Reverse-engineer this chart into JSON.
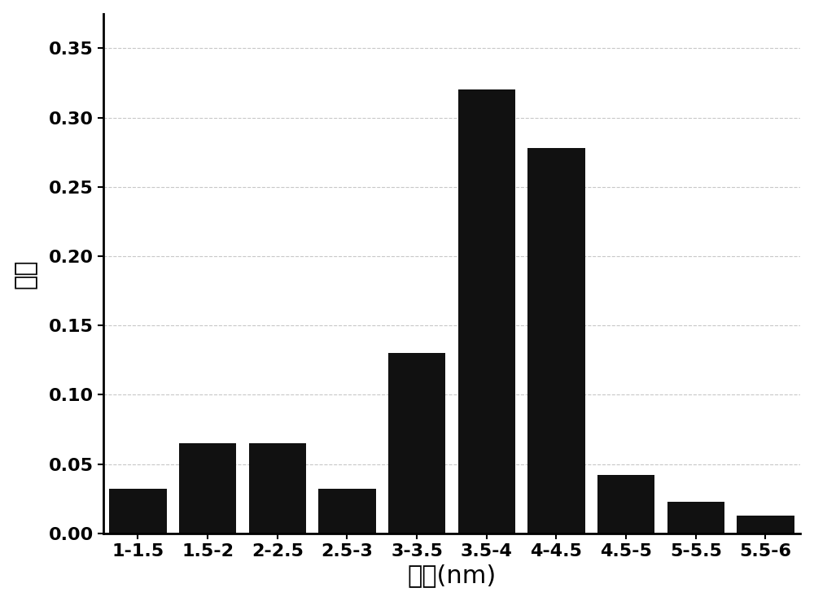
{
  "categories": [
    "1-1.5",
    "1.5-2",
    "2-2.5",
    "2.5-3",
    "3-3.5",
    "3.5-4",
    "4-4.5",
    "4.5-5",
    "5-5.5",
    "5.5-6"
  ],
  "values": [
    0.032,
    0.065,
    0.065,
    0.032,
    0.13,
    0.32,
    0.278,
    0.042,
    0.023,
    0.013
  ],
  "bar_color": "#111111",
  "xlabel": "直径(nm)",
  "ylabel": "频率",
  "ylim": [
    0,
    0.375
  ],
  "yticks": [
    0.0,
    0.05,
    0.1,
    0.15,
    0.2,
    0.25,
    0.3,
    0.35
  ],
  "grid_color": "#c8c8c8",
  "grid_linestyle": "--",
  "background_color": "#ffffff",
  "bar_width": 0.82,
  "xlabel_fontsize": 22,
  "ylabel_fontsize": 22,
  "tick_fontsize": 16,
  "tick_fontweight": "bold"
}
